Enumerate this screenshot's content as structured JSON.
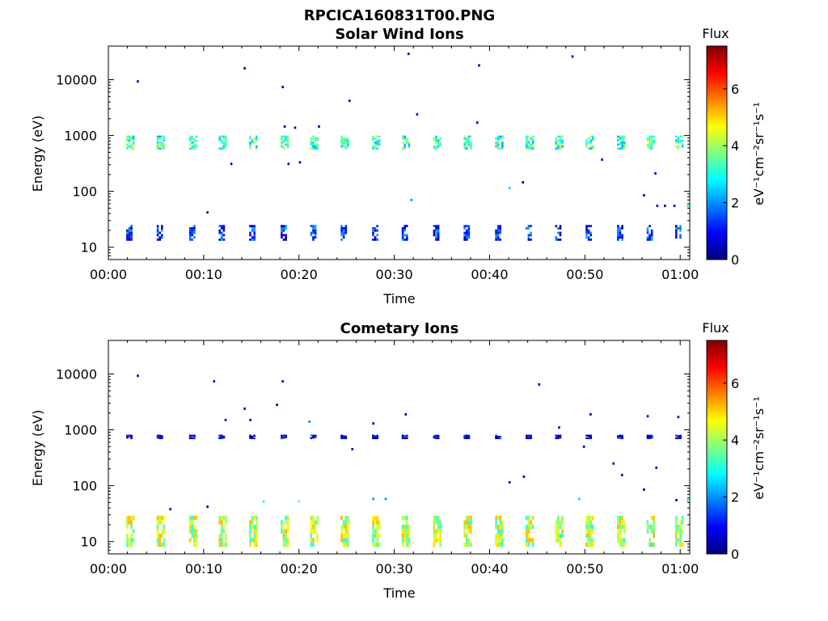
{
  "figure_title": "RPCICA160831T00.PNG",
  "colorbar": {
    "label": "Flux",
    "units_label": "eV⁻¹cm⁻²sr⁻¹s⁻¹",
    "ticks": [
      "0",
      "2",
      "4",
      "6"
    ],
    "range": [
      0,
      7.5
    ],
    "colormap": [
      "#00007f",
      "#0000ff",
      "#007fff",
      "#00ffff",
      "#7fff7f",
      "#ffff00",
      "#ff7f00",
      "#ff0000",
      "#7f0000"
    ]
  },
  "chart_data": [
    {
      "type": "heatmap",
      "title": "Solar Wind Ions",
      "xlabel": "Time",
      "ylabel": "Energy (eV)",
      "x_ticks": [
        "00:00",
        "00:10",
        "00:20",
        "00:30",
        "00:40",
        "00:50",
        "01:00"
      ],
      "y_ticks": [
        "10",
        "100",
        "1000",
        "10000"
      ],
      "yscale": "log",
      "xlim_minutes": [
        0,
        61
      ],
      "ylim": [
        6,
        40000
      ],
      "sweep_times_minutes": [
        2.3,
        5.5,
        8.9,
        12,
        15.2,
        18.5,
        21.6,
        24.8,
        28.1,
        31.2,
        34.5,
        37.7,
        41,
        44.2,
        47.3,
        50.5,
        53.8,
        56.9,
        59.9
      ],
      "bands": [
        {
          "name": "main",
          "e_low": 560,
          "e_high": 1000,
          "flux": 3.2
        },
        {
          "name": "low",
          "e_low": 13,
          "e_high": 25,
          "flux": 1.2
        }
      ],
      "scatter": [
        {
          "t": 3.1,
          "e": 9300,
          "f": 0.5
        },
        {
          "t": 14.3,
          "e": 16000,
          "f": 0.5
        },
        {
          "t": 18.3,
          "e": 7400,
          "f": 0.5
        },
        {
          "t": 25.3,
          "e": 4200,
          "f": 0.5
        },
        {
          "t": 31.5,
          "e": 29000,
          "f": 0.5
        },
        {
          "t": 32.4,
          "e": 2400,
          "f": 0.7
        },
        {
          "t": 38.9,
          "e": 18000,
          "f": 0.5
        },
        {
          "t": 48.7,
          "e": 26000,
          "f": 0.5
        },
        {
          "t": 12.9,
          "e": 310,
          "f": 0.5
        },
        {
          "t": 18.9,
          "e": 310,
          "f": 0.5
        },
        {
          "t": 20.1,
          "e": 330,
          "f": 0.5
        },
        {
          "t": 51.8,
          "e": 370,
          "f": 0.5
        },
        {
          "t": 42.1,
          "e": 115,
          "f": 2.5
        },
        {
          "t": 43.5,
          "e": 145,
          "f": 0.5
        },
        {
          "t": 31.8,
          "e": 70,
          "f": 2
        },
        {
          "t": 10.4,
          "e": 42,
          "f": 0.5
        },
        {
          "t": 56.2,
          "e": 85,
          "f": 0.5
        },
        {
          "t": 57.4,
          "e": 210,
          "f": 0.5
        },
        {
          "t": 57.6,
          "e": 55,
          "f": 0.5
        },
        {
          "t": 58.4,
          "e": 55,
          "f": 0.5
        },
        {
          "t": 59.4,
          "e": 55,
          "f": 0.5
        },
        {
          "t": 60.8,
          "e": 55,
          "f": 3
        },
        {
          "t": 18.5,
          "e": 1450,
          "f": 0.5
        },
        {
          "t": 19.6,
          "e": 1380,
          "f": 0.5
        },
        {
          "t": 22.1,
          "e": 1450,
          "f": 0.5
        },
        {
          "t": 38.7,
          "e": 1700,
          "f": 0.5
        }
      ]
    },
    {
      "type": "heatmap",
      "title": "Cometary Ions",
      "xlabel": "Time",
      "ylabel": "Energy (eV)",
      "x_ticks": [
        "00:00",
        "00:10",
        "00:20",
        "00:30",
        "00:40",
        "00:50",
        "01:00"
      ],
      "y_ticks": [
        "10",
        "100",
        "1000",
        "10000"
      ],
      "yscale": "log",
      "xlim_minutes": [
        0,
        61
      ],
      "ylim": [
        6,
        40000
      ],
      "sweep_times_minutes": [
        2.3,
        5.5,
        8.9,
        12,
        15.2,
        18.5,
        21.6,
        24.8,
        28.1,
        31.2,
        34.5,
        37.7,
        41,
        44.2,
        47.3,
        50.5,
        53.8,
        56.9,
        59.9
      ],
      "bands": [
        {
          "name": "main",
          "e_low": 8,
          "e_high": 29,
          "flux": 4.2
        },
        {
          "name": "high",
          "e_low": 700,
          "e_high": 820,
          "flux": 0.5
        }
      ],
      "scatter": [
        {
          "t": 3.1,
          "e": 9300,
          "f": 0.5
        },
        {
          "t": 11.1,
          "e": 7400,
          "f": 0.5
        },
        {
          "t": 18.3,
          "e": 7400,
          "f": 0.5
        },
        {
          "t": 14.3,
          "e": 2400,
          "f": 0.5
        },
        {
          "t": 17.7,
          "e": 2800,
          "f": 0.5
        },
        {
          "t": 12.3,
          "e": 1500,
          "f": 0.5
        },
        {
          "t": 14.9,
          "e": 1500,
          "f": 0.5
        },
        {
          "t": 21.1,
          "e": 1400,
          "f": 2
        },
        {
          "t": 27.8,
          "e": 1300,
          "f": 0.5
        },
        {
          "t": 31.2,
          "e": 1900,
          "f": 0.5
        },
        {
          "t": 45.2,
          "e": 6500,
          "f": 0.5
        },
        {
          "t": 47.3,
          "e": 1100,
          "f": 0.5
        },
        {
          "t": 50.6,
          "e": 1900,
          "f": 0.5
        },
        {
          "t": 56.6,
          "e": 1750,
          "f": 0.5
        },
        {
          "t": 59.8,
          "e": 1700,
          "f": 0.5
        },
        {
          "t": 25.6,
          "e": 450,
          "f": 0.5
        },
        {
          "t": 49.9,
          "e": 500,
          "f": 0.5
        },
        {
          "t": 53.0,
          "e": 250,
          "f": 0.5
        },
        {
          "t": 53.9,
          "e": 155,
          "f": 0.5
        },
        {
          "t": 57.5,
          "e": 210,
          "f": 0.5
        },
        {
          "t": 42.1,
          "e": 115,
          "f": 0.5
        },
        {
          "t": 43.6,
          "e": 145,
          "f": 0.5
        },
        {
          "t": 56.2,
          "e": 85,
          "f": 0.5
        },
        {
          "t": 59.6,
          "e": 55,
          "f": 0.5
        },
        {
          "t": 49.4,
          "e": 58,
          "f": 2.5
        },
        {
          "t": 27.8,
          "e": 58,
          "f": 2
        },
        {
          "t": 29.1,
          "e": 58,
          "f": 2
        },
        {
          "t": 16.3,
          "e": 52,
          "f": 3
        },
        {
          "t": 20.0,
          "e": 52,
          "f": 3.5
        },
        {
          "t": 10.4,
          "e": 42,
          "f": 0.5
        },
        {
          "t": 6.5,
          "e": 38,
          "f": 0.5
        },
        {
          "t": 60.8,
          "e": 55,
          "f": 3
        }
      ]
    }
  ]
}
